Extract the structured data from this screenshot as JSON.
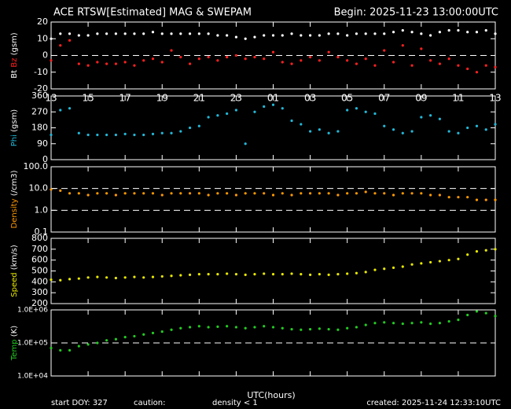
{
  "header": {
    "title": "ACE RTSW[Estimated] MAG & SWEPAM",
    "begin": "Begin: 2025-11-23 13:00:00UTC"
  },
  "footer": {
    "start": "start DOY: 327",
    "caution": "caution:",
    "caution_note": "density < 1",
    "caution_color": "#ff9900",
    "xlabel": "UTC(hours)",
    "created": "created: 2025-11-24 12:33:10UTC"
  },
  "chart_data": [
    {
      "type": "scatter",
      "ylabel_parts": [
        {
          "text": "Bt",
          "color": "#ffffff"
        },
        {
          "text": "Bz",
          "color": "#ff2020"
        },
        {
          "text": "(gsm)",
          "color": "#ffffff"
        }
      ],
      "x": [
        0,
        0.5,
        1,
        1.5,
        2,
        2.5,
        3,
        3.5,
        4,
        4.5,
        5,
        5.5,
        6,
        6.5,
        7,
        7.5,
        8,
        8.5,
        9,
        9.5,
        10,
        10.5,
        11,
        11.5,
        12,
        12.5,
        13,
        13.5,
        14,
        14.5,
        15,
        15.5,
        16,
        16.5,
        17,
        17.5,
        18,
        18.5,
        19,
        19.5,
        20,
        20.5,
        21,
        21.5,
        22,
        22.5,
        23,
        23.5,
        24
      ],
      "xlim": [
        0,
        24
      ],
      "xticks": [
        {
          "value": 0,
          "label": "13"
        },
        {
          "value": 2,
          "label": "15"
        },
        {
          "value": 4,
          "label": "17"
        },
        {
          "value": 6,
          "label": "19"
        },
        {
          "value": 8,
          "label": "21"
        },
        {
          "value": 10,
          "label": "23"
        },
        {
          "value": 12,
          "label": "01"
        },
        {
          "value": 14,
          "label": "03"
        },
        {
          "value": 16,
          "label": "05"
        },
        {
          "value": 18,
          "label": "07"
        },
        {
          "value": 20,
          "label": "09"
        },
        {
          "value": 22,
          "label": "11"
        },
        {
          "value": 24,
          "label": "13"
        }
      ],
      "ylim": [
        -20,
        20
      ],
      "yticks": [
        -20,
        -10,
        0,
        10,
        20
      ],
      "hlines": [
        0
      ],
      "series": [
        {
          "name": "Bt",
          "color": "#ffffff",
          "values": [
            10,
            13,
            13,
            12,
            12,
            13,
            13,
            13,
            13,
            13,
            13,
            14,
            13,
            13,
            13,
            13,
            13,
            13,
            12,
            12,
            11,
            10,
            11,
            12,
            12,
            12,
            13,
            12,
            12,
            12,
            13,
            13,
            12,
            13,
            13,
            13,
            13,
            14,
            15,
            14,
            13,
            12,
            14,
            15,
            15,
            14,
            14,
            15,
            13
          ]
        },
        {
          "name": "Bz",
          "color": "#ff2020",
          "values": [
            -3,
            6,
            9,
            -5,
            -6,
            -4,
            -5,
            -5,
            -4,
            -6,
            -3,
            -2,
            -4,
            3,
            -1,
            -5,
            -2,
            -1,
            -3,
            -1,
            0,
            -2,
            -1,
            -2,
            2,
            -4,
            -5,
            -3,
            -1,
            -3,
            2,
            -1,
            -3,
            -5,
            -2,
            -6,
            3,
            -4,
            6,
            -6,
            4,
            -3,
            -5,
            -2,
            -6,
            -8,
            -10,
            -6,
            -7
          ]
        }
      ]
    },
    {
      "type": "scatter",
      "ylabel_parts": [
        {
          "text": "Phi",
          "color": "#22b8d8"
        },
        {
          "text": "(gsm)",
          "color": "#ffffff"
        }
      ],
      "x": [
        0,
        0.5,
        1,
        1.5,
        2,
        2.5,
        3,
        3.5,
        4,
        4.5,
        5,
        5.5,
        6,
        6.5,
        7,
        7.5,
        8,
        8.5,
        9,
        9.5,
        10,
        10.5,
        11,
        11.5,
        12,
        12.5,
        13,
        13.5,
        14,
        14.5,
        15,
        15.5,
        16,
        16.5,
        17,
        17.5,
        18,
        18.5,
        19,
        19.5,
        20,
        20.5,
        21,
        21.5,
        22,
        22.5,
        23,
        23.5,
        24
      ],
      "xlim": [
        0,
        24
      ],
      "xticks": [
        0,
        2,
        4,
        6,
        8,
        10,
        12,
        14,
        16,
        18,
        20,
        22,
        24
      ],
      "ylim": [
        0,
        360
      ],
      "yticks": [
        0,
        90,
        180,
        270,
        360
      ],
      "hlines": [],
      "series": [
        {
          "name": "Phi",
          "color": "#22b8d8",
          "values": [
            140,
            280,
            290,
            150,
            140,
            140,
            140,
            140,
            145,
            140,
            140,
            145,
            150,
            150,
            160,
            180,
            190,
            240,
            250,
            260,
            280,
            90,
            270,
            300,
            310,
            290,
            220,
            200,
            160,
            170,
            150,
            160,
            280,
            290,
            270,
            260,
            190,
            170,
            150,
            160,
            240,
            250,
            230,
            160,
            150,
            180,
            190,
            170,
            200
          ]
        }
      ]
    },
    {
      "type": "scatter",
      "log": true,
      "ylabel_parts": [
        {
          "text": "Density",
          "color": "#ff9900"
        },
        {
          "text": "(/cm3)",
          "color": "#ffffff"
        }
      ],
      "x": [
        0,
        0.5,
        1,
        1.5,
        2,
        2.5,
        3,
        3.5,
        4,
        4.5,
        5,
        5.5,
        6,
        6.5,
        7,
        7.5,
        8,
        8.5,
        9,
        9.5,
        10,
        10.5,
        11,
        11.5,
        12,
        12.5,
        13,
        13.5,
        14,
        14.5,
        15,
        15.5,
        16,
        16.5,
        17,
        17.5,
        18,
        18.5,
        19,
        19.5,
        20,
        20.5,
        21,
        21.5,
        22,
        22.5,
        23,
        23.5,
        24
      ],
      "xlim": [
        0,
        24
      ],
      "xticks": [
        0,
        2,
        4,
        6,
        8,
        10,
        12,
        14,
        16,
        18,
        20,
        22,
        24
      ],
      "ylim": [
        0.1,
        100
      ],
      "yticks": [
        0.1,
        {
          "value": 1,
          "label": "1.0"
        },
        {
          "value": 10,
          "label": "10.0"
        },
        {
          "value": 100,
          "label": "100.0"
        }
      ],
      "hlines": [
        1,
        10
      ],
      "series": [
        {
          "name": "Density",
          "color": "#ff9900",
          "values": [
            9,
            8,
            6,
            6,
            5,
            6,
            6,
            5,
            6,
            6,
            6,
            6,
            5,
            6,
            6,
            6,
            6,
            5,
            6,
            6,
            5,
            6,
            6,
            6,
            5,
            6,
            5,
            6,
            6,
            6,
            6,
            5,
            6,
            6,
            7,
            6,
            6,
            5,
            6,
            6,
            6,
            5,
            5,
            4,
            4,
            4,
            3,
            3,
            3
          ]
        }
      ]
    },
    {
      "type": "scatter",
      "ylabel_parts": [
        {
          "text": "Speed",
          "color": "#e8e800"
        },
        {
          "text": "(km/s)",
          "color": "#ffffff"
        }
      ],
      "x": [
        0,
        0.5,
        1,
        1.5,
        2,
        2.5,
        3,
        3.5,
        4,
        4.5,
        5,
        5.5,
        6,
        6.5,
        7,
        7.5,
        8,
        8.5,
        9,
        9.5,
        10,
        10.5,
        11,
        11.5,
        12,
        12.5,
        13,
        13.5,
        14,
        14.5,
        15,
        15.5,
        16,
        16.5,
        17,
        17.5,
        18,
        18.5,
        19,
        19.5,
        20,
        20.5,
        21,
        21.5,
        22,
        22.5,
        23,
        23.5,
        24
      ],
      "xlim": [
        0,
        24
      ],
      "xticks": [
        0,
        2,
        4,
        6,
        8,
        10,
        12,
        14,
        16,
        18,
        20,
        22,
        24
      ],
      "ylim": [
        200,
        800
      ],
      "yticks": [
        200,
        300,
        400,
        500,
        600,
        700,
        800
      ],
      "hlines": [],
      "series": [
        {
          "name": "Speed",
          "color": "#e8e800",
          "values": [
            420,
            415,
            425,
            430,
            440,
            445,
            440,
            435,
            440,
            445,
            440,
            445,
            450,
            455,
            460,
            465,
            470,
            470,
            470,
            475,
            470,
            465,
            470,
            475,
            470,
            470,
            475,
            470,
            465,
            470,
            465,
            470,
            475,
            480,
            490,
            510,
            520,
            530,
            540,
            560,
            570,
            580,
            590,
            600,
            610,
            650,
            680,
            690,
            700
          ]
        }
      ]
    },
    {
      "type": "scatter",
      "log": true,
      "ylabel_parts": [
        {
          "text": "Temp",
          "color": "#22cc22"
        },
        {
          "text": "(K)",
          "color": "#ffffff"
        }
      ],
      "x": [
        0,
        0.5,
        1,
        1.5,
        2,
        2.5,
        3,
        3.5,
        4,
        4.5,
        5,
        5.5,
        6,
        6.5,
        7,
        7.5,
        8,
        8.5,
        9,
        9.5,
        10,
        10.5,
        11,
        11.5,
        12,
        12.5,
        13,
        13.5,
        14,
        14.5,
        15,
        15.5,
        16,
        16.5,
        17,
        17.5,
        18,
        18.5,
        19,
        19.5,
        20,
        20.5,
        21,
        21.5,
        22,
        22.5,
        23,
        23.5,
        24
      ],
      "xlim": [
        0,
        24
      ],
      "xticks": [
        0,
        2,
        4,
        6,
        8,
        10,
        12,
        14,
        16,
        18,
        20,
        22,
        24
      ],
      "ylim": [
        10000,
        1000000
      ],
      "yticks": [
        {
          "value": 10000,
          "label": "1.0E+04"
        },
        {
          "value": 100000,
          "label": "1.0E+05"
        },
        {
          "value": 1000000,
          "label": "1.0E+06"
        }
      ],
      "hlines": [
        100000
      ],
      "series": [
        {
          "name": "Temp",
          "color": "#22cc22",
          "values": [
            70000,
            60000,
            60000,
            80000,
            90000,
            100000,
            120000,
            130000,
            150000,
            160000,
            180000,
            200000,
            220000,
            250000,
            280000,
            300000,
            320000,
            300000,
            310000,
            320000,
            300000,
            280000,
            300000,
            320000,
            300000,
            280000,
            260000,
            250000,
            260000,
            270000,
            260000,
            250000,
            280000,
            300000,
            350000,
            400000,
            420000,
            400000,
            380000,
            400000,
            420000,
            380000,
            400000,
            450000,
            500000,
            700000,
            900000,
            800000,
            650000
          ]
        }
      ]
    }
  ]
}
